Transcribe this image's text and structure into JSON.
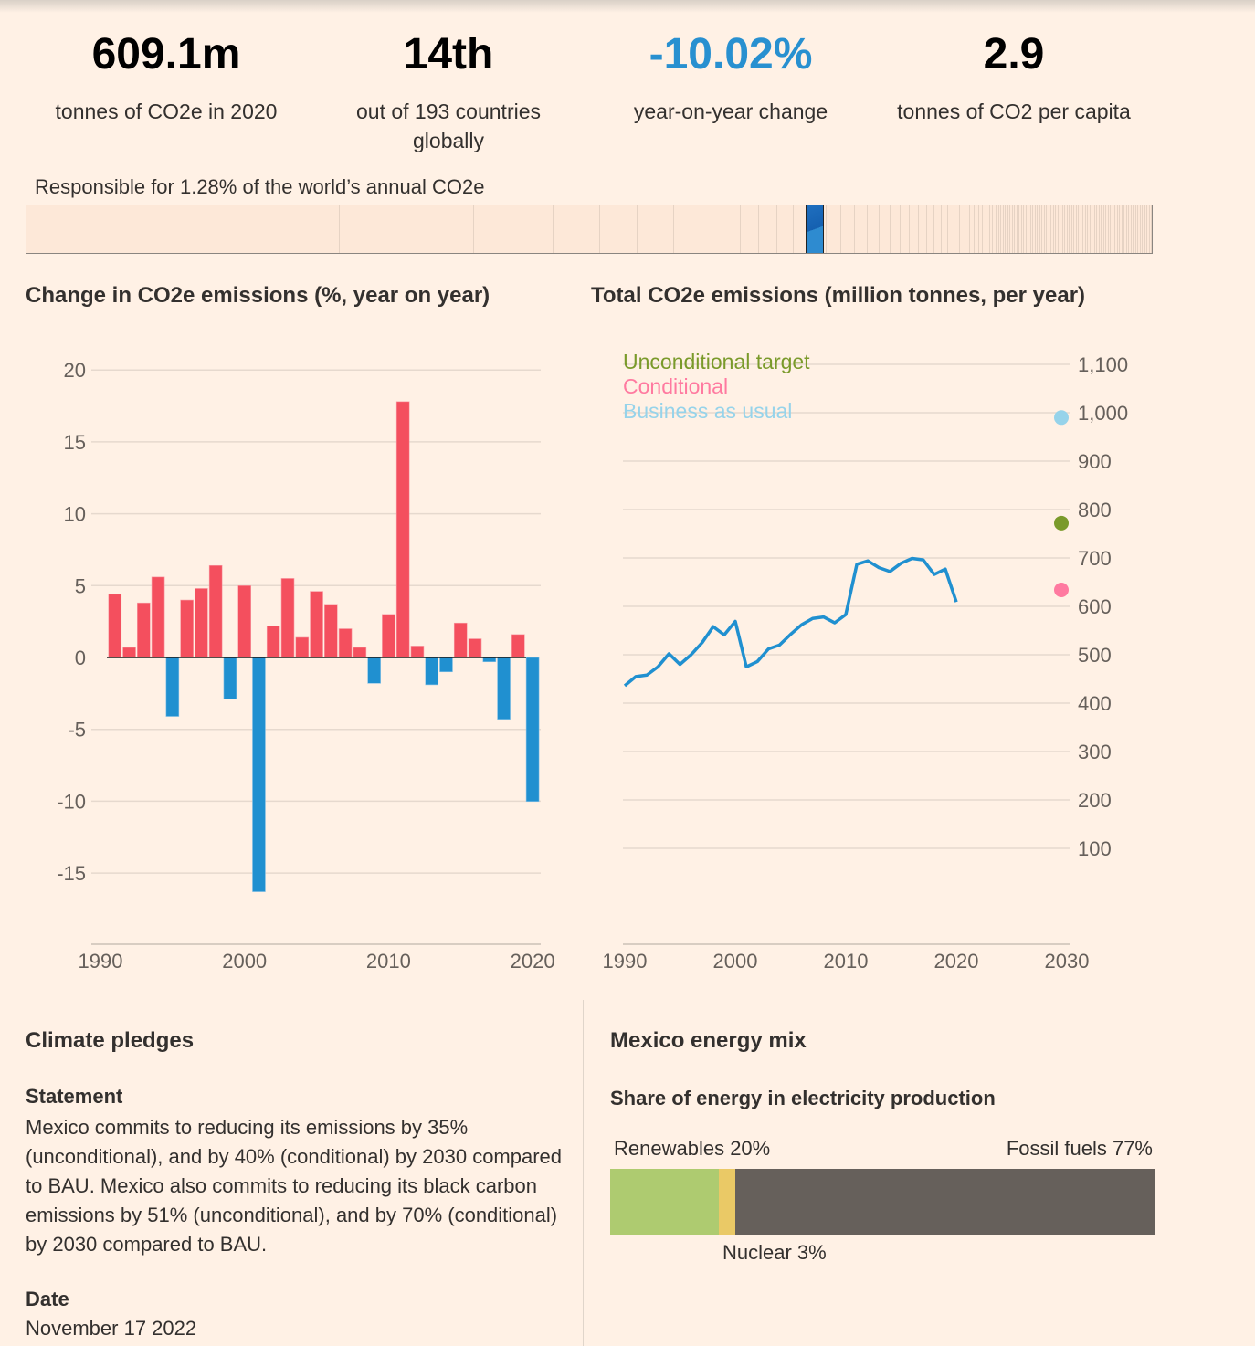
{
  "stats": [
    {
      "value": "609.1m",
      "label": "tonnes of CO2e in 2020"
    },
    {
      "value": "14th",
      "label": "out of 193 countries globally"
    },
    {
      "value": "-10.02%",
      "label": "year-on-year change",
      "color": "#2890d0"
    },
    {
      "value": "2.9",
      "label": "tonnes of CO2 per capita"
    }
  ],
  "world_share": {
    "label": "Responsible for 1.28% of the world’s annual CO2e",
    "share_pct": 1.28,
    "highlight_color": "#1f6fbf"
  },
  "chart_data": [
    {
      "type": "bar",
      "title": "Change in CO2e emissions (%, year on year)",
      "x": [
        1991,
        1992,
        1993,
        1994,
        1995,
        1996,
        1997,
        1998,
        1999,
        2000,
        2001,
        2002,
        2003,
        2004,
        2005,
        2006,
        2007,
        2008,
        2009,
        2010,
        2011,
        2012,
        2013,
        2014,
        2015,
        2016,
        2017,
        2018,
        2019,
        2020
      ],
      "values": [
        4.4,
        0.7,
        3.8,
        5.6,
        -4.1,
        4.0,
        4.8,
        6.4,
        -2.9,
        5.0,
        -16.3,
        2.2,
        5.5,
        1.4,
        4.6,
        3.7,
        2.0,
        0.7,
        -1.8,
        3.0,
        17.8,
        0.8,
        -1.9,
        -1.0,
        2.4,
        1.3,
        -0.3,
        -4.3,
        1.6,
        -10.02
      ],
      "positive_color": "#f44f5e",
      "negative_color": "#2090d0",
      "ylim": [
        -20,
        20
      ],
      "xlim": [
        1990,
        2020
      ],
      "yticks": [
        20,
        15,
        10,
        5,
        0,
        -5,
        -10,
        -15
      ],
      "xticks": [
        1990,
        2000,
        2010,
        2020
      ],
      "grid": true
    },
    {
      "type": "line",
      "title": "Total CO2e emissions (million tonnes, per year)",
      "x": [
        1990,
        1991,
        1992,
        1993,
        1994,
        1995,
        1996,
        1997,
        1998,
        1999,
        2000,
        2001,
        2002,
        2003,
        2004,
        2005,
        2006,
        2007,
        2008,
        2009,
        2010,
        2011,
        2012,
        2013,
        2014,
        2015,
        2016,
        2017,
        2018,
        2019,
        2020
      ],
      "values": [
        436,
        455,
        458,
        475,
        502,
        480,
        500,
        525,
        558,
        541,
        569,
        475,
        486,
        512,
        520,
        542,
        562,
        575,
        578,
        566,
        583,
        687,
        694,
        680,
        672,
        689,
        699,
        696,
        666,
        677,
        609
      ],
      "line_color": "#2090d0",
      "targets": [
        {
          "name": "Unconditional target",
          "year": 2030,
          "value": 772,
          "color": "#7a9a2a"
        },
        {
          "name": "Conditional",
          "year": 2030,
          "value": 634,
          "color": "#ff7aa0"
        },
        {
          "name": "Business as usual",
          "year": 2030,
          "value": 990,
          "color": "#96d3ea"
        }
      ],
      "ylim": [
        0,
        1100
      ],
      "xlim": [
        1990,
        2030
      ],
      "yticks": [
        100,
        200,
        300,
        400,
        500,
        600,
        700,
        800,
        900,
        1000,
        1100
      ],
      "ytick_labels": [
        "100",
        "200",
        "300",
        "400",
        "500",
        "600",
        "700",
        "800",
        "900",
        "1,000",
        "1,100"
      ],
      "xticks": [
        1990,
        2000,
        2010,
        2020,
        2030
      ],
      "grid": true,
      "legend": "top-left"
    }
  ],
  "pledges": {
    "title": "Climate pledges",
    "statement_label": "Statement",
    "statement": "Mexico commits to reducing its emissions by 35% (unconditional), and by 40% (conditional) by 2030 compared to BAU. Mexico also commits to reducing its black carbon emissions by 51% (unconditional), and by 70% (conditional) by 2030 compared to BAU.",
    "date_label": "Date",
    "date": "November 17 2022"
  },
  "energy": {
    "title": "Mexico energy mix",
    "subtitle": "Share of energy in electricity production",
    "segments": [
      {
        "label": "Renewables 20%",
        "pct": 20,
        "color": "#aecb70"
      },
      {
        "label": "Nuclear 3%",
        "pct": 3,
        "color": "#eac966"
      },
      {
        "label": "Fossil fuels 77%",
        "pct": 77,
        "color": "#66605b"
      }
    ]
  }
}
